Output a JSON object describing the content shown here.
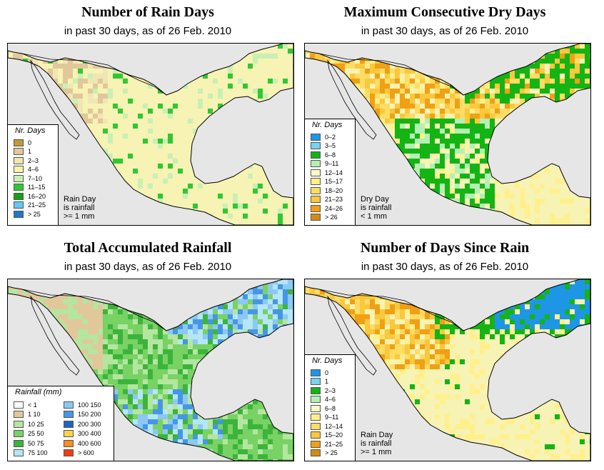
{
  "colors": {
    "ocean": "#e6e6e6",
    "land_base": "#f7f3b4",
    "border": "#000000"
  },
  "panels": [
    {
      "id": "rain-days",
      "title": "Number of Rain Days",
      "subtitle": "in past 30 days, as of  26 Feb. 2010",
      "legend_title": "Nr. Days",
      "legend": [
        {
          "label": "0",
          "color": "#c29938"
        },
        {
          "label": "1",
          "color": "#e2c79b"
        },
        {
          "label": "2–3",
          "color": "#f0e6b4"
        },
        {
          "label": "4–6",
          "color": "#f7f3a8"
        },
        {
          "label": "7–10",
          "color": "#c8f0b4"
        },
        {
          "label": "11–15",
          "color": "#2fc832"
        },
        {
          "label": "16–20",
          "color": "#14a014"
        },
        {
          "label": "21–25",
          "color": "#64c8f0"
        },
        {
          "label": "> 25",
          "color": "#1e78d2"
        }
      ],
      "footnote": [
        "Rain Day",
        "is rainfall",
        ">= 1 mm"
      ]
    },
    {
      "id": "max-dry-days",
      "title": "Maximum Consecutive Dry Days",
      "subtitle": "in past 30 days, as of  26 Feb. 2010",
      "legend_title": "Nr. Days",
      "legend": [
        {
          "label": "0–2",
          "color": "#1e96e6"
        },
        {
          "label": "3–5",
          "color": "#78d2f0"
        },
        {
          "label": "6–8",
          "color": "#14b414"
        },
        {
          "label": "9–11",
          "color": "#b4f0b4"
        },
        {
          "label": "12–14",
          "color": "#fafac8"
        },
        {
          "label": "15–17",
          "color": "#fff08c"
        },
        {
          "label": "18–20",
          "color": "#ffdc64"
        },
        {
          "label": "21–23",
          "color": "#fac83c"
        },
        {
          "label": "24–26",
          "color": "#f0a014"
        },
        {
          "label": "> 26",
          "color": "#d28c14"
        }
      ],
      "footnote": [
        "Dry Day",
        "is rainfall",
        "< 1 mm"
      ]
    },
    {
      "id": "total-rainfall",
      "title": "Total Accumulated Rainfall",
      "subtitle": "in past 30 days, as of  26 Feb. 2010",
      "legend_title": "Rainfall (mm)",
      "legend": [
        {
          "label": "< 1",
          "color": "#ffffff"
        },
        {
          "label": "1  10",
          "color": "#e2c79b"
        },
        {
          "label": "10  25",
          "color": "#b4e6a0"
        },
        {
          "label": "25  50",
          "color": "#78d264"
        },
        {
          "label": "50  75",
          "color": "#3cb43c"
        },
        {
          "label": "75  100",
          "color": "#b4e6f5"
        },
        {
          "label": "100  150",
          "color": "#8cc8f5"
        },
        {
          "label": "150  200",
          "color": "#4696e6"
        },
        {
          "label": "200  300",
          "color": "#1e64c8"
        },
        {
          "label": "300  400",
          "color": "#ffd24b"
        },
        {
          "label": "400  600",
          "color": "#ff8c1e"
        },
        {
          "label": "> 600",
          "color": "#f03c14"
        }
      ],
      "footnote": []
    },
    {
      "id": "days-since-rain",
      "title": "Number of Days Since Rain",
      "subtitle": "in past 30 days, as of  26 Feb. 2010",
      "legend_title": "Nr. Days",
      "legend": [
        {
          "label": "0",
          "color": "#1e96e6"
        },
        {
          "label": "1",
          "color": "#78d2f0"
        },
        {
          "label": "2–3",
          "color": "#14b414"
        },
        {
          "label": "4–6",
          "color": "#b4f0b4"
        },
        {
          "label": "6–8",
          "color": "#fafac8"
        },
        {
          "label": "9–11",
          "color": "#fff08c"
        },
        {
          "label": "12–14",
          "color": "#ffdc64"
        },
        {
          "label": "15–20",
          "color": "#fac83c"
        },
        {
          "label": "21–25",
          "color": "#f0a014"
        },
        {
          "label": "> 25",
          "color": "#d28c14"
        }
      ],
      "footnote": [
        "Rain Day",
        "is rainfall",
        ">= 1 mm"
      ]
    }
  ]
}
